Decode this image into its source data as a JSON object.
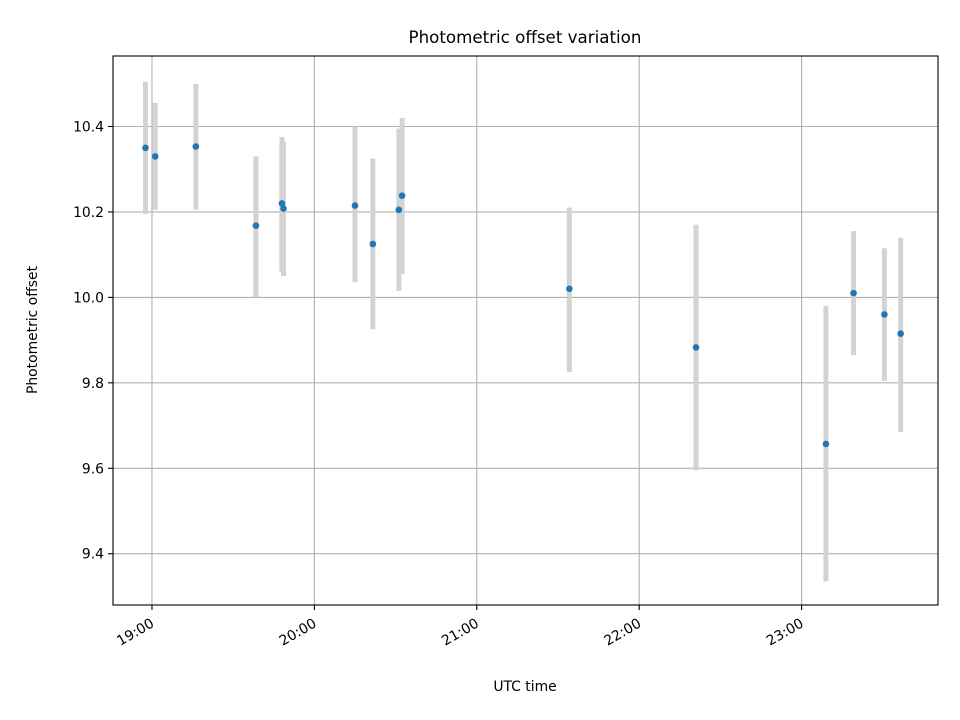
{
  "chart_data": {
    "type": "scatter",
    "title": "Photometric offset variation",
    "xlabel": "UTC time",
    "ylabel": "Photometric offset",
    "x_unit": "hours UTC",
    "xlim": [
      18.76,
      23.84
    ],
    "ylim": [
      9.28,
      10.565
    ],
    "x_ticks": [
      {
        "value": 19,
        "label": "19:00"
      },
      {
        "value": 20,
        "label": "20:00"
      },
      {
        "value": 21,
        "label": "21:00"
      },
      {
        "value": 22,
        "label": "22:00"
      },
      {
        "value": 23,
        "label": "23:00"
      }
    ],
    "y_ticks": [
      {
        "value": 9.4,
        "label": "9.4"
      },
      {
        "value": 9.6,
        "label": "9.6"
      },
      {
        "value": 9.8,
        "label": "9.8"
      },
      {
        "value": 10.0,
        "label": "10.0"
      },
      {
        "value": 10.2,
        "label": "10.2"
      },
      {
        "value": 10.4,
        "label": "10.4"
      }
    ],
    "grid": true,
    "x_tick_rotation": "rotated about 30 degrees",
    "colors": {
      "points": "#1f77b4",
      "error_bars": "#d3d3d3",
      "grid": "#b0b0b0"
    },
    "points": [
      {
        "x": 18.96,
        "y": 10.35,
        "ylow": 10.195,
        "yhigh": 10.505
      },
      {
        "x": 19.02,
        "y": 10.33,
        "ylow": 10.205,
        "yhigh": 10.455
      },
      {
        "x": 19.27,
        "y": 10.353,
        "ylow": 10.205,
        "yhigh": 10.5
      },
      {
        "x": 19.64,
        "y": 10.168,
        "ylow": 10.0,
        "yhigh": 10.33
      },
      {
        "x": 19.8,
        "y": 10.22,
        "ylow": 10.06,
        "yhigh": 10.375
      },
      {
        "x": 19.81,
        "y": 10.208,
        "ylow": 10.05,
        "yhigh": 10.365
      },
      {
        "x": 20.25,
        "y": 10.215,
        "ylow": 10.035,
        "yhigh": 10.4
      },
      {
        "x": 20.36,
        "y": 10.125,
        "ylow": 9.925,
        "yhigh": 10.325
      },
      {
        "x": 20.52,
        "y": 10.205,
        "ylow": 10.015,
        "yhigh": 10.395
      },
      {
        "x": 20.54,
        "y": 10.238,
        "ylow": 10.055,
        "yhigh": 10.42
      },
      {
        "x": 21.57,
        "y": 10.02,
        "ylow": 9.825,
        "yhigh": 10.21
      },
      {
        "x": 22.35,
        "y": 9.883,
        "ylow": 9.595,
        "yhigh": 10.17
      },
      {
        "x": 23.15,
        "y": 9.657,
        "ylow": 9.335,
        "yhigh": 9.98
      },
      {
        "x": 23.32,
        "y": 10.01,
        "ylow": 9.865,
        "yhigh": 10.155
      },
      {
        "x": 23.51,
        "y": 9.96,
        "ylow": 9.805,
        "yhigh": 10.115
      },
      {
        "x": 23.61,
        "y": 9.915,
        "ylow": 9.685,
        "yhigh": 10.14
      }
    ]
  }
}
